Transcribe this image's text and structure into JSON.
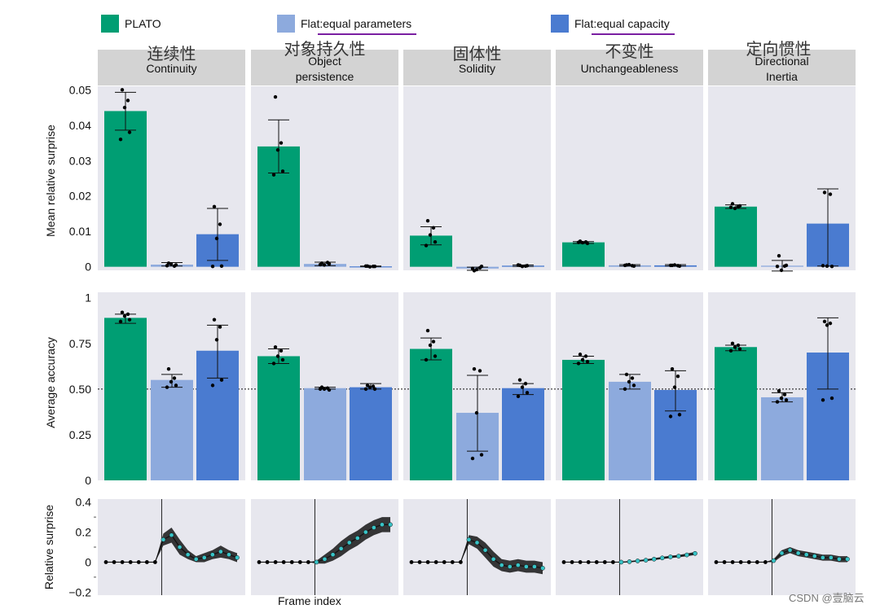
{
  "legend": [
    {
      "label_prefix": "PLATO",
      "label_suffix": "",
      "color": "#009e73"
    },
    {
      "label_prefix": "Flat: ",
      "label_suffix": "equal parameters",
      "color": "#8daadd"
    },
    {
      "label_prefix": "Flat: ",
      "label_suffix": "equal capacity",
      "color": "#4a7bd0"
    }
  ],
  "panels": [
    {
      "cn": "连续性",
      "title_lines": [
        "Continuity"
      ]
    },
    {
      "cn": "对象持久性",
      "title_lines": [
        "Object",
        "persistence"
      ]
    },
    {
      "cn": "固体性",
      "title_lines": [
        "Solidity"
      ]
    },
    {
      "cn": "不变性",
      "title_lines": [
        "Unchangeableness"
      ]
    },
    {
      "cn": "定向惯性",
      "title_lines": [
        "Directional",
        "Inertia"
      ]
    }
  ],
  "axes": {
    "row1_ylabel": "Mean relative surprise",
    "row2_ylabel": "Average accuracy",
    "row3_ylabel": "Relative surprise",
    "row3_xlabel": "Frame index",
    "row1_ticks": [
      "0.05",
      "0.04",
      "0.03",
      "0.02",
      "0.01",
      "0"
    ],
    "row2_ticks": [
      "1",
      "0.75",
      "0.50",
      "0.25",
      "0"
    ],
    "row3_ticks": [
      "0.4",
      "0.2",
      "0",
      "−0.2"
    ]
  },
  "watermark": "CSDN @壹脑云",
  "chart_data": [
    {
      "type": "bar",
      "name": "surprise",
      "ylabel": "Mean relative surprise",
      "ylim": [
        -0.001,
        0.051
      ],
      "series": [
        "PLATO",
        "Flat: equal parameters",
        "Flat: equal capacity"
      ],
      "panels": [
        "Continuity",
        "Object persistence",
        "Solidity",
        "Unchangeableness",
        "Directional Inertia"
      ],
      "values": [
        [
          0.044,
          0.0006,
          0.0092
        ],
        [
          0.034,
          0.0008,
          0.0001
        ],
        [
          0.0088,
          -0.0005,
          0.0003
        ],
        [
          0.0069,
          0.0004,
          0.0004
        ],
        [
          0.017,
          0.0003,
          0.0122
        ]
      ],
      "errors": [
        [
          [
            0.0386,
            0.0493
          ],
          [
            0.0002,
            0.0012
          ],
          [
            0.0018,
            0.0165
          ]
        ],
        [
          [
            0.0265,
            0.0415
          ],
          [
            0.0003,
            0.0013
          ],
          [
            0.0,
            0.0002
          ]
        ],
        [
          [
            0.0062,
            0.0113
          ],
          [
            -0.001,
            -0.0001
          ],
          [
            0.0001,
            0.0005
          ]
        ],
        [
          [
            0.0066,
            0.0071
          ],
          [
            0.0002,
            0.0006
          ],
          [
            0.0002,
            0.0006
          ]
        ],
        [
          [
            0.0165,
            0.0175
          ],
          [
            -0.0012,
            0.0018
          ],
          [
            0.0002,
            0.022
          ]
        ]
      ],
      "points": [
        [
          [
            0.05,
            0.047,
            0.045,
            0.038,
            0.036
          ],
          [
            0.001,
            0.0002,
            0.0008,
            0.0005,
            0.0003
          ],
          [
            0.017,
            0.012,
            0.008,
            0.0002,
            0.0001
          ]
        ],
        [
          [
            0.048,
            0.035,
            0.033,
            0.027,
            0.026
          ],
          [
            0.001,
            0.0012,
            0.0005,
            0.0008,
            0.0006
          ],
          [
            0.0002,
            0.0001,
            0.0,
            0.0001,
            0.0002
          ]
        ],
        [
          [
            0.013,
            0.011,
            0.009,
            0.007,
            0.006
          ],
          [
            -0.0011,
            -0.0003,
            -0.0008,
            0.0001,
            -0.0005
          ],
          [
            0.0004,
            0.0002,
            0.0001,
            0.0003,
            0.0005
          ]
        ],
        [
          [
            0.0072,
            0.007,
            0.0068,
            0.0066,
            0.0069
          ],
          [
            0.0005,
            0.0003,
            0.0006,
            0.0002,
            0.0004
          ],
          [
            0.0004,
            0.0003,
            0.0005,
            0.0002,
            0.0004
          ]
        ],
        [
          [
            0.0178,
            0.017,
            0.0165,
            0.0172,
            0.0168
          ],
          [
            0.0031,
            0.0002,
            -0.001,
            0.0004,
            0.0001
          ],
          [
            0.021,
            0.0205,
            0.0002,
            0.0001,
            0.0003
          ]
        ]
      ]
    },
    {
      "type": "bar",
      "name": "accuracy",
      "ylabel": "Average accuracy",
      "ylim": [
        0,
        1.03
      ],
      "reference_line": 0.5,
      "series": [
        "PLATO",
        "Flat: equal parameters",
        "Flat: equal capacity"
      ],
      "panels": [
        "Continuity",
        "Object persistence",
        "Solidity",
        "Unchangeableness",
        "Directional Inertia"
      ],
      "values": [
        [
          0.89,
          0.55,
          0.71
        ],
        [
          0.68,
          0.505,
          0.51
        ],
        [
          0.72,
          0.37,
          0.505
        ],
        [
          0.66,
          0.54,
          0.495
        ],
        [
          0.73,
          0.455,
          0.7
        ]
      ],
      "errors": [
        [
          [
            0.86,
            0.91
          ],
          [
            0.51,
            0.58
          ],
          [
            0.56,
            0.85
          ]
        ],
        [
          [
            0.64,
            0.72
          ],
          [
            0.5,
            0.51
          ],
          [
            0.5,
            0.53
          ]
        ],
        [
          [
            0.66,
            0.78
          ],
          [
            0.16,
            0.575
          ],
          [
            0.47,
            0.53
          ]
        ],
        [
          [
            0.64,
            0.68
          ],
          [
            0.5,
            0.58
          ],
          [
            0.38,
            0.6
          ]
        ],
        [
          [
            0.71,
            0.74
          ],
          [
            0.43,
            0.48
          ],
          [
            0.5,
            0.89
          ]
        ]
      ],
      "points": [
        [
          [
            0.92,
            0.91,
            0.9,
            0.88,
            0.87
          ],
          [
            0.61,
            0.56,
            0.54,
            0.52,
            0.51
          ],
          [
            0.88,
            0.84,
            0.77,
            0.55,
            0.52
          ]
        ],
        [
          [
            0.73,
            0.71,
            0.68,
            0.66,
            0.64
          ],
          [
            0.51,
            0.505,
            0.5,
            0.495,
            0.5
          ],
          [
            0.52,
            0.515,
            0.51,
            0.5,
            0.5
          ]
        ],
        [
          [
            0.82,
            0.76,
            0.74,
            0.68,
            0.66
          ],
          [
            0.61,
            0.6,
            0.37,
            0.14,
            0.12
          ],
          [
            0.55,
            0.53,
            0.51,
            0.48,
            0.46
          ]
        ],
        [
          [
            0.69,
            0.68,
            0.66,
            0.65,
            0.64
          ],
          [
            0.58,
            0.56,
            0.54,
            0.52,
            0.5
          ],
          [
            0.61,
            0.57,
            0.51,
            0.36,
            0.35
          ]
        ],
        [
          [
            0.75,
            0.74,
            0.73,
            0.72,
            0.71
          ],
          [
            0.49,
            0.47,
            0.45,
            0.44,
            0.43
          ],
          [
            0.87,
            0.86,
            0.85,
            0.45,
            0.44
          ]
        ]
      ]
    },
    {
      "type": "line",
      "name": "relative surprise over frames",
      "ylabel": "Relative surprise",
      "xlabel": "Frame index",
      "ylim": [
        -0.22,
        0.42
      ],
      "frames": 16,
      "event_frame": 7,
      "panels": [
        {
          "panel": "Continuity",
          "mean": [
            0,
            0,
            0,
            0,
            0,
            0,
            0,
            0.15,
            0.18,
            0.1,
            0.05,
            0.02,
            0.03,
            0.05,
            0.07,
            0.05,
            0.03
          ],
          "band": [
            0,
            0,
            0,
            0,
            0,
            0,
            0,
            0.04,
            0.05,
            0.05,
            0.03,
            0.02,
            0.03,
            0.03,
            0.04,
            0.03,
            0.03
          ]
        },
        {
          "panel": "Object persistence",
          "mean": [
            0,
            0,
            0,
            0,
            0,
            0,
            0,
            0.0,
            0.02,
            0.05,
            0.09,
            0.13,
            0.16,
            0.2,
            0.23,
            0.25,
            0.25
          ],
          "band": [
            0,
            0,
            0,
            0,
            0,
            0,
            0,
            0.01,
            0.03,
            0.04,
            0.05,
            0.05,
            0.05,
            0.05,
            0.05,
            0.05,
            0.05
          ]
        },
        {
          "panel": "Solidity",
          "mean": [
            0,
            0,
            0,
            0,
            0,
            0,
            0,
            0.15,
            0.13,
            0.08,
            0.02,
            -0.02,
            -0.03,
            -0.02,
            -0.03,
            -0.03,
            -0.04
          ],
          "band": [
            0,
            0,
            0,
            0,
            0,
            0,
            0,
            0.03,
            0.04,
            0.05,
            0.05,
            0.04,
            0.04,
            0.04,
            0.04,
            0.04,
            0.04
          ]
        },
        {
          "panel": "Unchangeableness",
          "mean": [
            0,
            0,
            0,
            0,
            0,
            0,
            0,
            0.0,
            0.003,
            0.008,
            0.013,
            0.02,
            0.028,
            0.035,
            0.04,
            0.048,
            0.058
          ],
          "band": [
            0,
            0,
            0,
            0,
            0,
            0,
            0,
            0.003,
            0.004,
            0.005,
            0.006,
            0.007,
            0.007,
            0.008,
            0.008,
            0.009,
            0.01
          ]
        },
        {
          "panel": "Directional Inertia",
          "mean": [
            0,
            0,
            0,
            0,
            0,
            0,
            0,
            0.01,
            0.06,
            0.08,
            0.06,
            0.05,
            0.04,
            0.03,
            0.03,
            0.02,
            0.02
          ],
          "band": [
            0,
            0,
            0,
            0,
            0,
            0,
            0,
            0.01,
            0.02,
            0.02,
            0.02,
            0.02,
            0.02,
            0.02,
            0.02,
            0.02,
            0.02
          ]
        }
      ]
    }
  ]
}
